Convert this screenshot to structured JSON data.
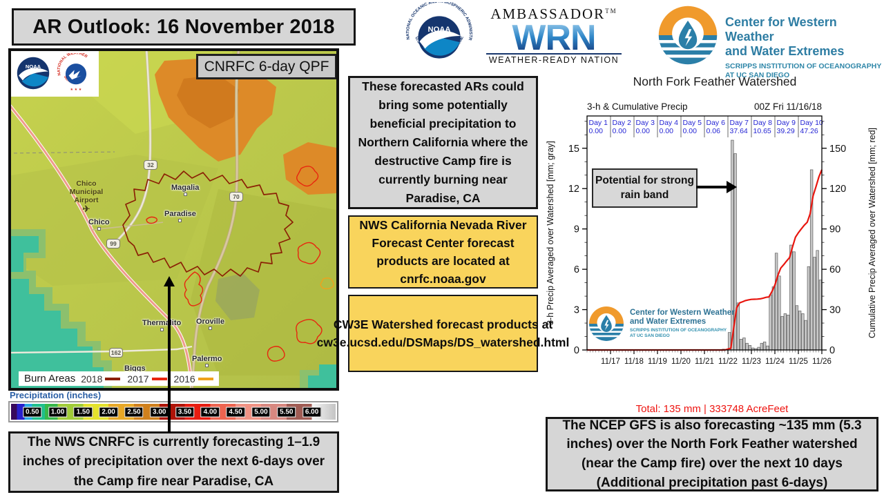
{
  "slide": {
    "title": "AR Outlook: 16 November 2018"
  },
  "logos": {
    "noaa": {
      "abbr": "NOAA",
      "ring_top": "NATIONAL OCEANIC AND ATMOSPHERIC ADMINISTRATION",
      "ring_bottom": "U.S. DEPARTMENT OF COMMERCE"
    },
    "nws": {
      "ring_top": "NATIONAL WEATHER",
      "ring_bottom": "SERVICE"
    },
    "wrn": {
      "ambassador": "AMBASSADOR",
      "tm": "TM",
      "acronym": "WRN",
      "tagline": "WEATHER-READY NATION"
    },
    "cw3e": {
      "name_line1": "Center for Western Weather",
      "name_line2": "and Water Extremes",
      "scripps_line1": "SCRIPPS INSTITUTION OF OCEANOGRAPHY",
      "scripps_line2": "AT UC SAN DIEGO"
    }
  },
  "map": {
    "badge": "CNRFC 6-day QPF",
    "towns": [
      {
        "name": "Magalia"
      },
      {
        "name": "Paradise"
      },
      {
        "name": "Chico"
      },
      {
        "name": "Thermalito"
      },
      {
        "name": "Oroville"
      },
      {
        "name": "Palermo"
      },
      {
        "name": "Biggs"
      }
    ],
    "airport": {
      "line1": "Chico",
      "line2": "Municipal",
      "line3": "Airport",
      "icon": "✈"
    },
    "shields": [
      {
        "num": "32"
      },
      {
        "num": "99"
      },
      {
        "num": "70"
      },
      {
        "num": "162"
      }
    ],
    "burn_legend": {
      "title": "Burn Areas",
      "items": [
        {
          "year": "2018",
          "color": "#8b2005"
        },
        {
          "year": "2017",
          "color": "#e8250e"
        },
        {
          "year": "2016",
          "color": "#efa21c"
        }
      ]
    }
  },
  "precip_legend": {
    "title": "Precipitation (inches)",
    "labels": [
      "0.50",
      "1.00",
      "1.50",
      "2.00",
      "2.50",
      "3.00",
      "3.50",
      "4.00",
      "4.50",
      "5.00",
      "5.50",
      "6.00"
    ]
  },
  "notes": {
    "ar_box": "These forecasted ARs could bring some potentially beneficial precipitation to Northern California where the destructive Camp fire is currently burning near Paradise, CA",
    "cnrfc_box": "NWS California Nevada River Forecast Center forecast products are located at cnrfc.noaa.gov",
    "cw3e_box": "CW3E Watershed forecast products at cw3e.ucsd.edu/DSMaps/DS_watershed.html",
    "qpf_box": "The NWS CNRFC is currently forecasting 1–1.9 inches of precipitation over the next 6-days over the Camp fire near Paradise, CA",
    "gfs_box": "The NCEP GFS is also forecasting ~135 mm (5.3 inches) over the North Fork Feather watershed (near the Camp fire) over the next 10 days (Additional precipitation past 6-days)"
  },
  "chart_data": {
    "type": "bar",
    "title": "North Fork Feather Watershed",
    "subtitle_left": "3-h & Cumulative Precip",
    "subtitle_right": "00Z Fri 11/16/18",
    "ylabel_left": "3-h Precip Averaged over Watershed [mm; gray]",
    "ylabel_right": "Cumulative Precip Averaged over Watershed [mm; red]",
    "x_start_label": "11/16 00Z",
    "x_ticks": [
      "11/17",
      "11/18",
      "11/19",
      "11/20",
      "11/21",
      "11/22",
      "11/23",
      "11/24",
      "11/25",
      "11/26"
    ],
    "y_left_ticks": [
      0,
      3,
      6,
      9,
      12,
      15
    ],
    "y_left_max": 17.4,
    "y_right_ticks": [
      0,
      30,
      60,
      90,
      120,
      150
    ],
    "y_right_max": 174,
    "day_totals": [
      {
        "label": "Day 1",
        "value": "0.00"
      },
      {
        "label": "Day 2",
        "value": "0.00"
      },
      {
        "label": "Day 3",
        "value": "0.00"
      },
      {
        "label": "Day 4",
        "value": "0.00"
      },
      {
        "label": "Day 5",
        "value": "0.00"
      },
      {
        "label": "Day 6",
        "value": "0.06"
      },
      {
        "label": "Day 7",
        "value": "37.64"
      },
      {
        "label": "Day 8",
        "value": "10.65"
      },
      {
        "label": "Day 9",
        "value": "39.29"
      },
      {
        "label": "Day 10",
        "value": "47.26"
      }
    ],
    "bars_3h_mm": [
      [
        5.75,
        0.06
      ],
      [
        6,
        1.3
      ],
      [
        6.125,
        15.6
      ],
      [
        6.25,
        14.6
      ],
      [
        6.375,
        3.5
      ],
      [
        6.5,
        0.8
      ],
      [
        6.625,
        0.9
      ],
      [
        6.75,
        0.5
      ],
      [
        6.875,
        0.34
      ],
      [
        7,
        0.15
      ],
      [
        7.125,
        0.1
      ],
      [
        7.25,
        0.2
      ],
      [
        7.375,
        0.5
      ],
      [
        7.5,
        0.6
      ],
      [
        7.625,
        0.3
      ],
      [
        7.75,
        4.1
      ],
      [
        7.875,
        4.7
      ],
      [
        8,
        7.2
      ],
      [
        8.125,
        5.5
      ],
      [
        8.25,
        2.5
      ],
      [
        8.375,
        2.7
      ],
      [
        8.5,
        2.6
      ],
      [
        8.625,
        7.8
      ],
      [
        8.75,
        7.3
      ],
      [
        8.875,
        3.3
      ],
      [
        9,
        2.9
      ],
      [
        9.125,
        2.7
      ],
      [
        9.25,
        2.2
      ],
      [
        9.375,
        6.2
      ],
      [
        9.5,
        13.4
      ],
      [
        9.625,
        6.9
      ],
      [
        9.75,
        7.4
      ],
      [
        9.875,
        5.2
      ]
    ],
    "annotation": "Potential for strong rain band",
    "total_caption": "Total: 135 mm | 333748 AcreFeet",
    "bar_color": "#c7c7c7",
    "bar_edge": "#5e5e5e",
    "line_color": "#e8150e",
    "day_label_color": "#2424d4"
  }
}
